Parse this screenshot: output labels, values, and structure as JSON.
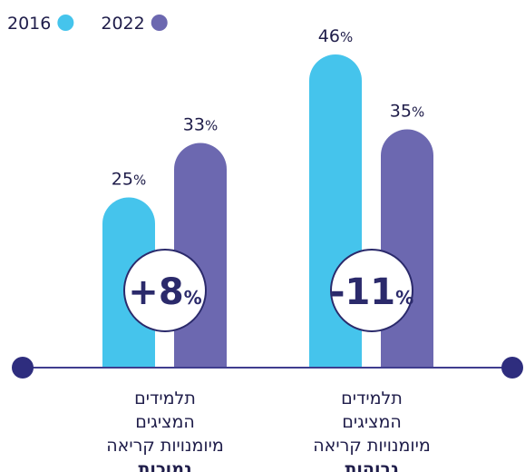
{
  "chart_data": {
    "type": "bar",
    "categories": [
      [
        "תלמידים",
        "המציגים",
        "מיומנויות קריאה",
        "נמוכות"
      ],
      [
        "תלמידים",
        "המציגים",
        "מיומנויות קריאה",
        "גבוהות"
      ]
    ],
    "series": [
      {
        "name": "2016",
        "color": "#45c4ec",
        "values": [
          25,
          46
        ],
        "value_labels": [
          "25%",
          "46%"
        ]
      },
      {
        "name": "2022",
        "color": "#6c68b0",
        "values": [
          33,
          35
        ],
        "value_labels": [
          "33%",
          "35%"
        ]
      }
    ],
    "annotations": [
      "+8%",
      "-11%"
    ],
    "ylim": [
      0,
      54
    ]
  }
}
